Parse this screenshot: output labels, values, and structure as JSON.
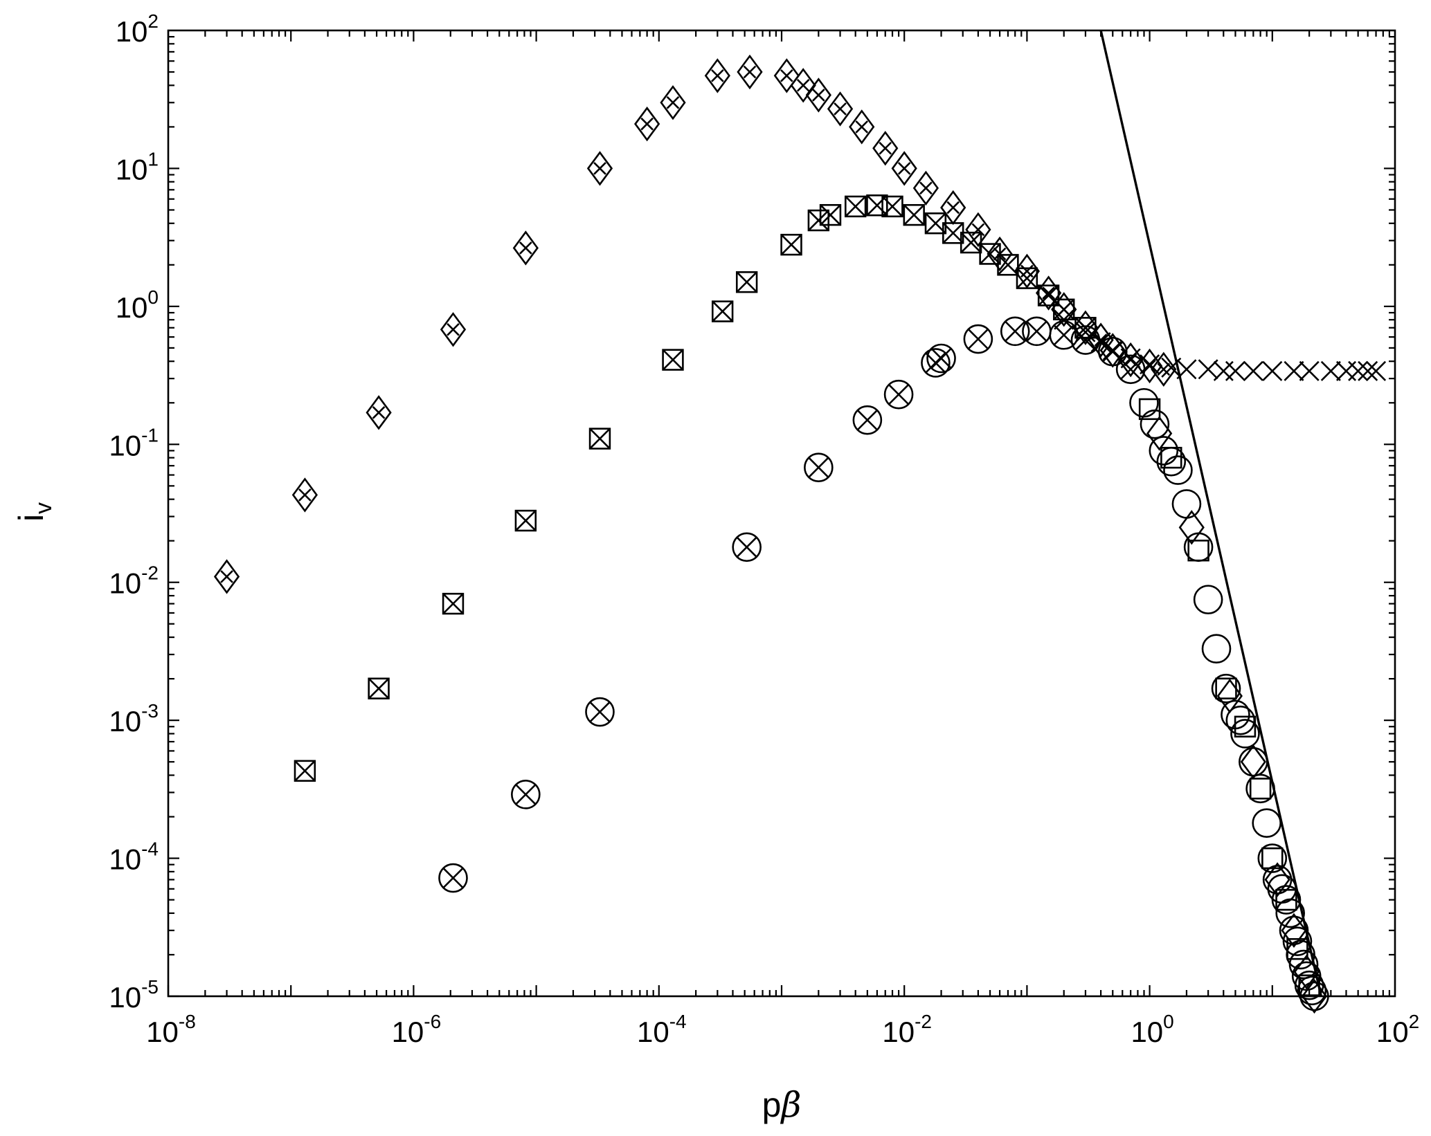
{
  "chart_data": {
    "type": "scatter",
    "xscale": "log",
    "yscale": "log",
    "xlim": [
      1e-08,
      100
    ],
    "ylim": [
      1e-05,
      100
    ],
    "x_tick_values": [
      1e-08,
      1e-06,
      0.0001,
      0.01,
      1,
      100
    ],
    "x_tick_labels": [
      {
        "base": "10",
        "exp": "-8"
      },
      {
        "base": "10",
        "exp": "-6"
      },
      {
        "base": "10",
        "exp": "-4"
      },
      {
        "base": "10",
        "exp": "-2"
      },
      {
        "base": "10",
        "exp": "0"
      },
      {
        "base": "10",
        "exp": "2"
      }
    ],
    "y_tick_values": [
      1e-05,
      0.0001,
      0.001,
      0.01,
      0.1,
      1,
      10,
      100
    ],
    "y_tick_labels": [
      {
        "base": "10",
        "exp": "-5"
      },
      {
        "base": "10",
        "exp": "-4"
      },
      {
        "base": "10",
        "exp": "-3"
      },
      {
        "base": "10",
        "exp": "-2"
      },
      {
        "base": "10",
        "exp": "-1"
      },
      {
        "base": "10",
        "exp": "0"
      },
      {
        "base": "10",
        "exp": "1"
      },
      {
        "base": "10",
        "exp": "2"
      }
    ],
    "xlabel": {
      "main": "p",
      "greek": "β"
    },
    "ylabel": {
      "main": "i",
      "sub": "v"
    },
    "grid": false,
    "legend": "none",
    "series": [
      {
        "marker": "diamond-cross",
        "x": [
          3e-08,
          1.3e-07,
          5.2e-07,
          2.1e-06,
          8.2e-06,
          3.3e-05,
          8e-05,
          0.00013,
          0.0003,
          0.00055,
          0.0011,
          0.0015,
          0.002,
          0.003,
          0.0045,
          0.007,
          0.01,
          0.015,
          0.025,
          0.04,
          0.06,
          0.1,
          0.15,
          0.2,
          0.3,
          0.4,
          0.5,
          0.7,
          1.0,
          1.3
        ],
        "y": [
          0.011,
          0.043,
          0.17,
          0.68,
          2.65,
          10,
          21,
          30,
          47,
          50,
          47,
          40,
          34,
          27,
          20,
          14,
          10,
          7.2,
          5.2,
          3.6,
          2.4,
          1.8,
          1.25,
          0.95,
          0.7,
          0.57,
          0.48,
          0.41,
          0.37,
          0.35
        ]
      },
      {
        "marker": "square-cross",
        "x": [
          1.3e-07,
          5.2e-07,
          2.1e-06,
          8.2e-06,
          3.3e-05,
          0.00013,
          0.00033,
          0.00052,
          0.0012,
          0.002,
          0.0025,
          0.004,
          0.006,
          0.008,
          0.012,
          0.018,
          0.025,
          0.035,
          0.05,
          0.07,
          0.1,
          0.15,
          0.2,
          0.3
        ],
        "y": [
          0.00043,
          0.0017,
          0.007,
          0.028,
          0.11,
          0.41,
          0.92,
          1.5,
          2.8,
          4.2,
          4.6,
          5.3,
          5.4,
          5.3,
          4.6,
          4.0,
          3.4,
          2.9,
          2.4,
          2.0,
          1.6,
          1.2,
          0.95,
          0.7
        ]
      },
      {
        "marker": "circle-cross",
        "x": [
          2.1e-06,
          8.2e-06,
          3.3e-05,
          0.00052,
          0.002,
          0.005,
          0.009,
          0.018,
          0.02,
          0.04,
          0.08,
          0.12,
          0.2,
          0.3,
          0.5,
          0.7
        ],
        "y": [
          7.2e-05,
          0.00029,
          0.00115,
          0.018,
          0.068,
          0.15,
          0.23,
          0.39,
          0.42,
          0.58,
          0.66,
          0.66,
          0.62,
          0.57,
          0.47,
          0.35
        ]
      },
      {
        "marker": "x",
        "x": [
          0.2,
          0.3,
          0.4,
          0.5,
          0.7,
          1.0,
          1.5,
          2,
          3,
          4,
          5,
          7,
          10,
          15,
          20,
          30,
          40,
          50,
          60,
          70
        ],
        "y": [
          0.8,
          0.65,
          0.55,
          0.48,
          0.42,
          0.38,
          0.36,
          0.35,
          0.35,
          0.34,
          0.34,
          0.34,
          0.34,
          0.34,
          0.34,
          0.34,
          0.34,
          0.34,
          0.34,
          0.34
        ]
      },
      {
        "marker": "circle",
        "x": [
          0.9,
          1.1,
          1.3,
          1.5,
          1.7,
          2,
          2.5,
          3,
          3.5,
          4.2,
          5,
          5.5,
          6,
          7,
          8,
          9,
          10,
          11,
          12,
          13,
          14,
          15,
          16,
          17,
          18,
          19,
          20,
          21,
          22
        ],
        "y": [
          0.2,
          0.14,
          0.09,
          0.075,
          0.065,
          0.037,
          0.018,
          0.0075,
          0.0033,
          0.0017,
          0.0011,
          0.001,
          0.0008,
          0.0005,
          0.00032,
          0.00018,
          0.0001,
          7e-05,
          6e-05,
          5e-05,
          4e-05,
          3e-05,
          2.5e-05,
          2e-05,
          1.7e-05,
          1.4e-05,
          1.2e-05,
          1.1e-05,
          1e-05
        ]
      },
      {
        "marker": "square",
        "x": [
          1.0,
          1.5,
          2.5,
          4.2,
          6,
          8,
          10,
          13,
          16,
          20
        ],
        "y": [
          0.18,
          0.08,
          0.017,
          0.0017,
          0.0009,
          0.00032,
          0.0001,
          5e-05,
          2.2e-05,
          1.2e-05
        ]
      },
      {
        "marker": "diamond",
        "x": [
          1.2,
          2.2,
          4.5,
          7,
          11,
          15,
          19,
          22
        ],
        "y": [
          0.12,
          0.025,
          0.0015,
          0.0005,
          7e-05,
          3e-05,
          1.5e-05,
          1e-05
        ]
      }
    ],
    "lines": [
      {
        "x": [
          0.4,
          25
        ],
        "y": [
          100,
          1e-05
        ]
      }
    ]
  }
}
